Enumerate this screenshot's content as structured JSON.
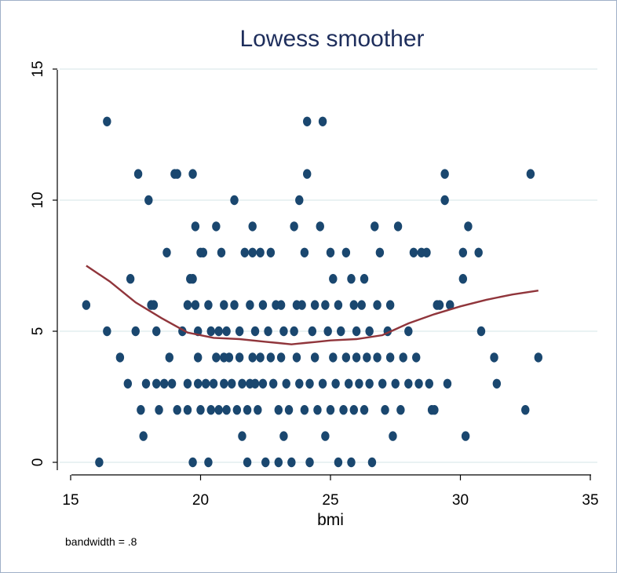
{
  "chart_data": {
    "type": "scatter",
    "title": "Lowess smoother",
    "xlabel": "bmi",
    "ylabel": "",
    "note": "bandwidth = .8",
    "xlim": [
      15,
      35
    ],
    "ylim": [
      0,
      15
    ],
    "xticks": [
      15,
      20,
      25,
      30,
      35
    ],
    "yticks": [
      0,
      5,
      10,
      15
    ],
    "grid": true,
    "marker_color": "#1a476f",
    "line_color": "#90353b",
    "grid_color": "#eaf2f3",
    "points": [
      [
        15.6,
        6
      ],
      [
        16.1,
        0
      ],
      [
        16.4,
        13
      ],
      [
        16.4,
        5
      ],
      [
        16.9,
        4
      ],
      [
        17.2,
        3
      ],
      [
        17.3,
        7
      ],
      [
        17.5,
        5
      ],
      [
        17.6,
        11
      ],
      [
        17.7,
        2
      ],
      [
        17.8,
        1
      ],
      [
        17.9,
        3
      ],
      [
        18.0,
        10
      ],
      [
        18.1,
        6
      ],
      [
        18.2,
        6
      ],
      [
        18.3,
        5
      ],
      [
        18.3,
        3
      ],
      [
        18.4,
        2
      ],
      [
        18.6,
        3
      ],
      [
        18.7,
        8
      ],
      [
        18.8,
        4
      ],
      [
        18.9,
        3
      ],
      [
        19.0,
        11
      ],
      [
        19.1,
        11
      ],
      [
        19.1,
        2
      ],
      [
        19.3,
        5
      ],
      [
        19.5,
        6
      ],
      [
        19.5,
        3
      ],
      [
        19.5,
        2
      ],
      [
        19.6,
        7
      ],
      [
        19.7,
        11
      ],
      [
        19.7,
        7
      ],
      [
        19.7,
        0
      ],
      [
        19.8,
        9
      ],
      [
        19.8,
        6
      ],
      [
        19.9,
        5
      ],
      [
        19.9,
        4
      ],
      [
        19.9,
        3
      ],
      [
        20.0,
        8
      ],
      [
        20.0,
        2
      ],
      [
        20.1,
        8
      ],
      [
        20.2,
        3
      ],
      [
        20.3,
        6
      ],
      [
        20.3,
        0
      ],
      [
        20.4,
        5
      ],
      [
        20.4,
        2
      ],
      [
        20.5,
        3
      ],
      [
        20.6,
        9
      ],
      [
        20.6,
        4
      ],
      [
        20.7,
        5
      ],
      [
        20.7,
        2
      ],
      [
        20.8,
        8
      ],
      [
        20.9,
        6
      ],
      [
        20.9,
        4
      ],
      [
        20.9,
        3
      ],
      [
        21.0,
        5
      ],
      [
        21.0,
        2
      ],
      [
        21.1,
        4
      ],
      [
        21.2,
        3
      ],
      [
        21.3,
        10
      ],
      [
        21.3,
        6
      ],
      [
        21.4,
        2
      ],
      [
        21.5,
        5
      ],
      [
        21.5,
        4
      ],
      [
        21.6,
        3
      ],
      [
        21.6,
        1
      ],
      [
        21.7,
        8
      ],
      [
        21.8,
        0
      ],
      [
        21.8,
        2
      ],
      [
        21.9,
        6
      ],
      [
        21.9,
        3
      ],
      [
        22.0,
        4
      ],
      [
        22.0,
        9
      ],
      [
        22.0,
        8
      ],
      [
        22.1,
        5
      ],
      [
        22.1,
        3
      ],
      [
        22.2,
        2
      ],
      [
        22.3,
        8
      ],
      [
        22.3,
        4
      ],
      [
        22.4,
        6
      ],
      [
        22.4,
        3
      ],
      [
        22.5,
        0
      ],
      [
        22.6,
        5
      ],
      [
        22.7,
        8
      ],
      [
        22.7,
        4
      ],
      [
        22.8,
        3
      ],
      [
        22.9,
        6
      ],
      [
        23.0,
        2
      ],
      [
        23.0,
        0
      ],
      [
        23.1,
        6
      ],
      [
        23.1,
        4
      ],
      [
        23.2,
        5
      ],
      [
        23.2,
        1
      ],
      [
        23.3,
        3
      ],
      [
        23.4,
        2
      ],
      [
        23.5,
        0
      ],
      [
        23.6,
        9
      ],
      [
        23.6,
        5
      ],
      [
        23.7,
        6
      ],
      [
        23.7,
        4
      ],
      [
        23.8,
        10
      ],
      [
        23.8,
        3
      ],
      [
        23.9,
        6
      ],
      [
        24.0,
        2
      ],
      [
        24.0,
        8
      ],
      [
        24.1,
        13
      ],
      [
        24.1,
        11
      ],
      [
        24.2,
        0
      ],
      [
        24.2,
        3
      ],
      [
        24.3,
        5
      ],
      [
        24.4,
        6
      ],
      [
        24.4,
        4
      ],
      [
        24.5,
        2
      ],
      [
        24.6,
        9
      ],
      [
        24.7,
        13
      ],
      [
        24.7,
        3
      ],
      [
        24.8,
        6
      ],
      [
        24.8,
        1
      ],
      [
        24.9,
        5
      ],
      [
        25.0,
        8
      ],
      [
        25.0,
        2
      ],
      [
        25.1,
        7
      ],
      [
        25.1,
        4
      ],
      [
        25.2,
        3
      ],
      [
        25.3,
        6
      ],
      [
        25.3,
        0
      ],
      [
        25.4,
        5
      ],
      [
        25.5,
        2
      ],
      [
        25.6,
        8
      ],
      [
        25.6,
        4
      ],
      [
        25.7,
        3
      ],
      [
        25.8,
        7
      ],
      [
        25.8,
        0
      ],
      [
        25.9,
        6
      ],
      [
        25.9,
        2
      ],
      [
        26.0,
        5
      ],
      [
        26.0,
        4
      ],
      [
        26.1,
        3
      ],
      [
        26.2,
        6
      ],
      [
        26.3,
        7
      ],
      [
        26.3,
        2
      ],
      [
        26.4,
        4
      ],
      [
        26.5,
        5
      ],
      [
        26.5,
        3
      ],
      [
        26.6,
        0
      ],
      [
        26.7,
        9
      ],
      [
        26.8,
        6
      ],
      [
        26.8,
        4
      ],
      [
        26.9,
        8
      ],
      [
        27.0,
        3
      ],
      [
        27.1,
        2
      ],
      [
        27.2,
        5
      ],
      [
        27.3,
        6
      ],
      [
        27.3,
        4
      ],
      [
        27.4,
        1
      ],
      [
        27.5,
        3
      ],
      [
        27.6,
        9
      ],
      [
        27.7,
        2
      ],
      [
        27.8,
        4
      ],
      [
        28.0,
        5
      ],
      [
        28.0,
        3
      ],
      [
        28.2,
        8
      ],
      [
        28.3,
        4
      ],
      [
        28.4,
        3
      ],
      [
        28.5,
        8
      ],
      [
        28.7,
        8
      ],
      [
        28.8,
        3
      ],
      [
        28.9,
        2
      ],
      [
        29.0,
        2
      ],
      [
        29.1,
        6
      ],
      [
        29.2,
        6
      ],
      [
        29.4,
        11
      ],
      [
        29.4,
        10
      ],
      [
        29.5,
        3
      ],
      [
        29.6,
        6
      ],
      [
        30.1,
        7
      ],
      [
        30.1,
        8
      ],
      [
        30.2,
        1
      ],
      [
        30.3,
        9
      ],
      [
        30.7,
        8
      ],
      [
        30.8,
        5
      ],
      [
        31.3,
        4
      ],
      [
        31.4,
        3
      ],
      [
        32.5,
        2
      ],
      [
        32.7,
        11
      ],
      [
        33.0,
        4
      ]
    ],
    "lowess": [
      [
        15.6,
        7.5
      ],
      [
        16.5,
        6.9
      ],
      [
        17.5,
        6.1
      ],
      [
        18.5,
        5.5
      ],
      [
        19.5,
        4.95
      ],
      [
        20.5,
        4.75
      ],
      [
        21.5,
        4.7
      ],
      [
        22.5,
        4.6
      ],
      [
        23.0,
        4.55
      ],
      [
        23.5,
        4.5
      ],
      [
        24.0,
        4.55
      ],
      [
        24.5,
        4.6
      ],
      [
        25.0,
        4.65
      ],
      [
        26.0,
        4.7
      ],
      [
        27.0,
        4.85
      ],
      [
        28.0,
        5.3
      ],
      [
        29.0,
        5.65
      ],
      [
        30.0,
        5.95
      ],
      [
        31.0,
        6.2
      ],
      [
        32.0,
        6.4
      ],
      [
        33.0,
        6.55
      ]
    ]
  }
}
